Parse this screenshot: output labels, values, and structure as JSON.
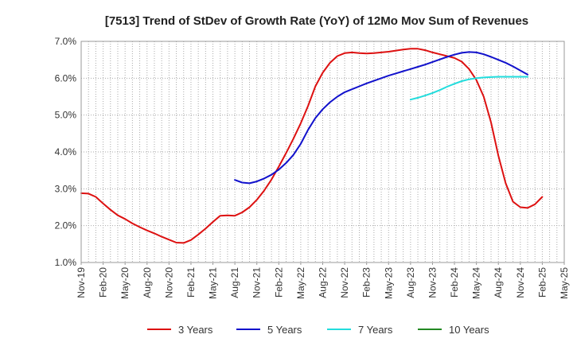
{
  "chart_data": {
    "type": "line",
    "title": "[7513]  Trend of StDev of Growth Rate (YoY) of 12Mo Mov Sum of Revenues",
    "xlabel": "",
    "ylabel": "",
    "ylim": [
      1.0,
      7.0
    ],
    "y_ticks": [
      "1.0%",
      "2.0%",
      "3.0%",
      "4.0%",
      "5.0%",
      "6.0%",
      "7.0%"
    ],
    "x_tick_labels": [
      "Nov-19",
      "Feb-20",
      "May-20",
      "Aug-20",
      "Nov-20",
      "Feb-21",
      "May-21",
      "Aug-21",
      "Nov-21",
      "Feb-22",
      "May-22",
      "Aug-22",
      "Nov-22",
      "Feb-23",
      "May-23",
      "Aug-23",
      "Nov-23",
      "Feb-24",
      "May-24",
      "Aug-24",
      "Nov-24",
      "Feb-25",
      "May-25"
    ],
    "x_months_total": 66,
    "grid": true,
    "legend_position": "bottom",
    "series": [
      {
        "name": "3 Years",
        "color": "#dd1111",
        "start_month": 0,
        "values": [
          2.88,
          2.87,
          2.78,
          2.6,
          2.43,
          2.28,
          2.18,
          2.06,
          1.96,
          1.87,
          1.79,
          1.7,
          1.62,
          1.54,
          1.53,
          1.61,
          1.76,
          1.92,
          2.1,
          2.27,
          2.28,
          2.27,
          2.36,
          2.5,
          2.7,
          2.95,
          3.25,
          3.6,
          3.97,
          4.36,
          4.78,
          5.25,
          5.78,
          6.15,
          6.42,
          6.6,
          6.68,
          6.7,
          6.68,
          6.67,
          6.68,
          6.7,
          6.72,
          6.75,
          6.78,
          6.8,
          6.8,
          6.76,
          6.7,
          6.65,
          6.6,
          6.55,
          6.45,
          6.25,
          5.95,
          5.5,
          4.8,
          3.9,
          3.15,
          2.65,
          2.5,
          2.48,
          2.58,
          2.78
        ]
      },
      {
        "name": "5 Years",
        "color": "#1111cc",
        "start_month": 21,
        "values": [
          3.24,
          3.17,
          3.15,
          3.2,
          3.28,
          3.38,
          3.52,
          3.7,
          3.92,
          4.22,
          4.6,
          4.92,
          5.16,
          5.35,
          5.5,
          5.62,
          5.7,
          5.78,
          5.86,
          5.93,
          6.0,
          6.07,
          6.13,
          6.19,
          6.25,
          6.31,
          6.37,
          6.44,
          6.51,
          6.58,
          6.64,
          6.69,
          6.71,
          6.7,
          6.65,
          6.58,
          6.5,
          6.42,
          6.32,
          6.21,
          6.1
        ]
      },
      {
        "name": "7 Years",
        "color": "#22dddd",
        "start_month": 45,
        "values": [
          5.42,
          5.47,
          5.53,
          5.6,
          5.68,
          5.77,
          5.85,
          5.92,
          5.97,
          6.0,
          6.02,
          6.03,
          6.04,
          6.04,
          6.04,
          6.04,
          6.04
        ]
      },
      {
        "name": "10 Years",
        "color": "#228822",
        "start_month": 0,
        "values": []
      }
    ]
  }
}
